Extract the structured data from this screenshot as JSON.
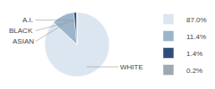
{
  "chart_data": {
    "type": "pie",
    "categories": [
      "WHITE",
      "ASIAN",
      "BLACK",
      "A.I."
    ],
    "values": [
      87.0,
      11.4,
      1.4,
      0.2
    ],
    "value_labels": [
      "87.0%",
      "11.4%",
      "1.4%",
      "0.2%"
    ],
    "colors": [
      "#dce6f0",
      "#9ab5cc",
      "#2e4d7b",
      "#a0a8b0"
    ],
    "legend": "right"
  }
}
